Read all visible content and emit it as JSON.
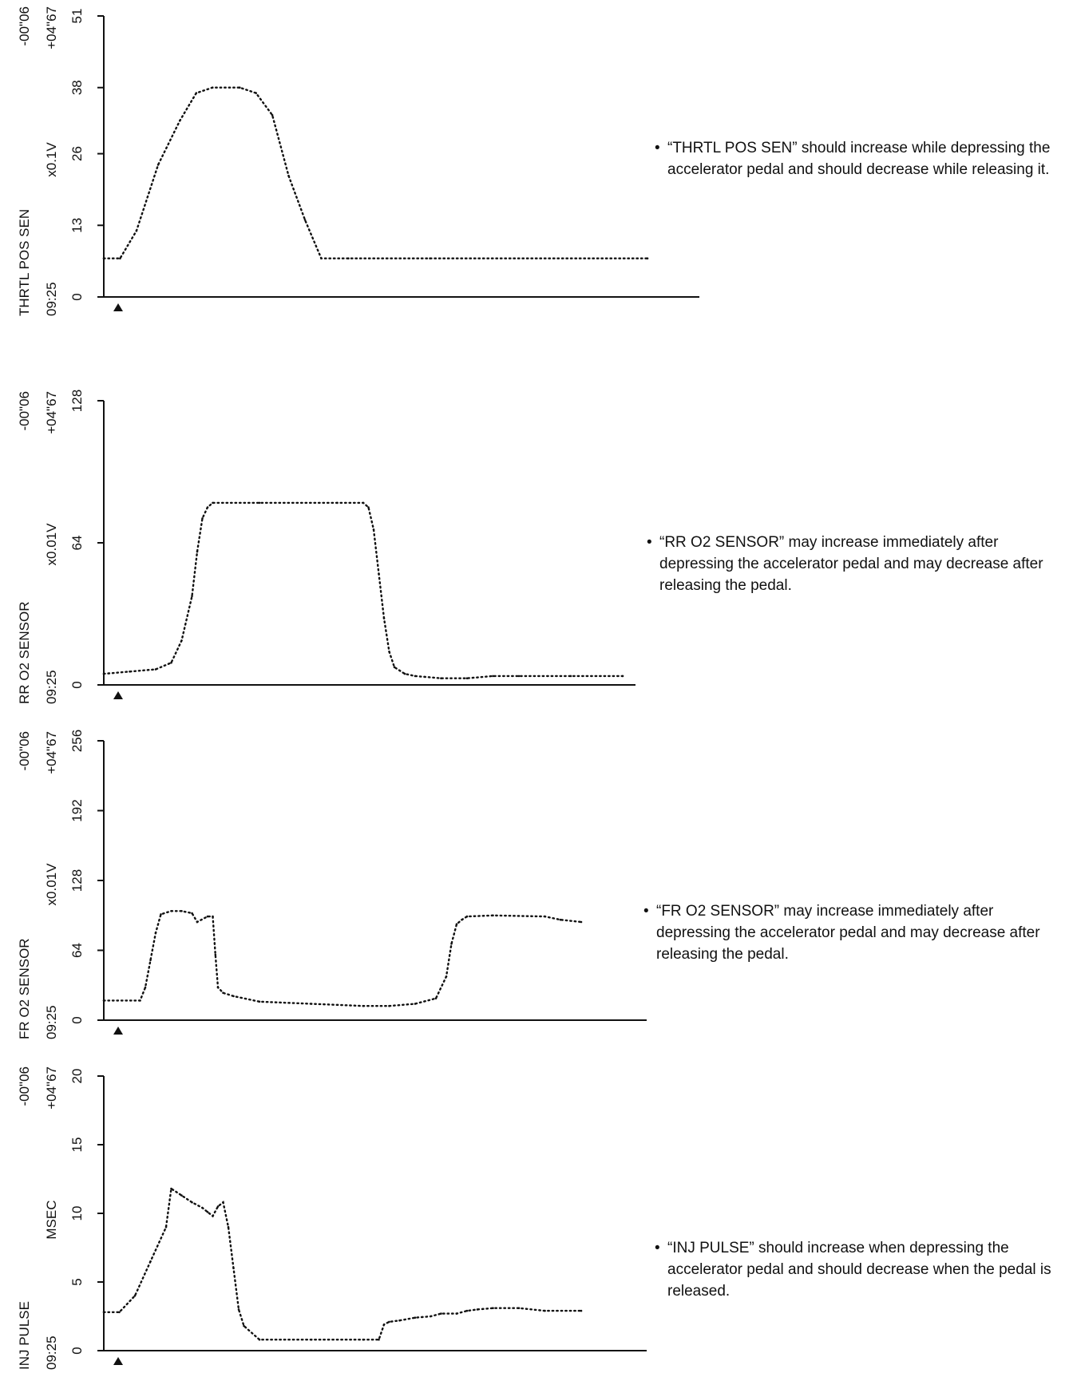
{
  "chart_data": [
    {
      "type": "line",
      "ylim": [
        0,
        51
      ],
      "yticks": [
        "0",
        "13",
        "26",
        "38",
        "51"
      ],
      "side_labels": {
        "name": "THRTL POS SEN",
        "unit": "x0.1V",
        "time": "09:25",
        "start": "-00\"06",
        "end": "+04\"67"
      },
      "series": [
        {
          "x": [
            0,
            3,
            6,
            10,
            14,
            17,
            20,
            25,
            28,
            31,
            34,
            37,
            40,
            45,
            60,
            100
          ],
          "y": [
            7,
            7,
            12,
            24,
            32,
            37,
            38,
            38,
            37,
            33,
            22,
            14,
            7,
            7,
            7,
            7
          ]
        }
      ],
      "note": "“THRTL POS SEN” should increase while depressing the accelerator pedal and should decrease while releasing it."
    },
    {
      "type": "line",
      "ylim": [
        0,
        128
      ],
      "yticks": [
        "0",
        "64",
        "128"
      ],
      "side_labels": {
        "name": "RR O2 SENSOR",
        "unit": "x0.01V",
        "time": "09:25",
        "start": "-00\"06",
        "end": "+04\"67"
      },
      "series": [
        {
          "x": [
            0,
            5,
            10,
            13,
            15,
            17,
            18,
            19,
            20,
            21,
            30,
            45,
            50,
            51,
            52,
            53,
            54,
            55,
            56,
            58,
            60,
            65,
            70,
            75,
            80,
            90,
            100
          ],
          "y": [
            5,
            6,
            7,
            10,
            20,
            40,
            60,
            75,
            80,
            82,
            82,
            82,
            82,
            80,
            70,
            50,
            30,
            15,
            8,
            5,
            4,
            3,
            3,
            4,
            4,
            4,
            4
          ]
        }
      ],
      "note": "“RR O2 SENSOR” may increase immediately after depressing the accelerator pedal and may decrease after releasing the pedal."
    },
    {
      "type": "line",
      "ylim": [
        0,
        256
      ],
      "yticks": [
        "0",
        "64",
        "128",
        "192",
        "256"
      ],
      "side_labels": {
        "name": "FR O2 SENSOR",
        "unit": "x0.01V",
        "time": "09:25",
        "start": "-00\"06",
        "end": "+04\"67"
      },
      "series": [
        {
          "x": [
            0,
            7,
            8,
            9,
            10,
            11,
            13,
            15,
            17,
            18,
            20,
            21,
            21.5,
            22,
            23,
            25,
            30,
            40,
            50,
            55,
            60,
            64,
            66,
            67,
            68,
            69,
            70,
            75,
            85,
            88,
            92
          ],
          "y": [
            18,
            18,
            30,
            55,
            80,
            97,
            100,
            100,
            98,
            90,
            95,
            95,
            60,
            30,
            25,
            22,
            17,
            15,
            13,
            13,
            15,
            20,
            40,
            70,
            88,
            92,
            95,
            96,
            95,
            92,
            90
          ]
        }
      ],
      "note": "“FR O2 SENSOR” may increase immediately after depressing the accelerator pedal and may decrease after releasing the pedal."
    },
    {
      "type": "line",
      "ylim": [
        0,
        20
      ],
      "yticks": [
        "0",
        "5",
        "10",
        "15",
        "20"
      ],
      "side_labels": {
        "name": "INJ PULSE",
        "unit": "MSEC",
        "time": "09:25",
        "start": "-00\"06",
        "end": "+04\"67"
      },
      "series": [
        {
          "x": [
            0,
            3,
            6,
            9,
            12,
            13,
            15,
            17,
            19,
            20,
            21,
            22,
            23,
            24,
            25,
            26,
            27,
            30,
            40,
            50,
            53,
            54,
            55,
            57,
            60,
            63,
            65,
            68,
            70,
            72,
            75,
            80,
            85,
            92
          ],
          "y": [
            2.8,
            2.8,
            4,
            6.5,
            9,
            11.8,
            11.3,
            10.8,
            10.4,
            10.1,
            9.8,
            10.5,
            10.8,
            9,
            6,
            3,
            1.8,
            0.8,
            0.8,
            0.8,
            0.8,
            1.9,
            2.1,
            2.2,
            2.4,
            2.5,
            2.7,
            2.7,
            2.9,
            3.0,
            3.1,
            3.1,
            2.9,
            2.9
          ]
        }
      ],
      "note": "“INJ PULSE” should increase when depressing the accelerator pedal and should decrease when the pedal is released."
    }
  ]
}
